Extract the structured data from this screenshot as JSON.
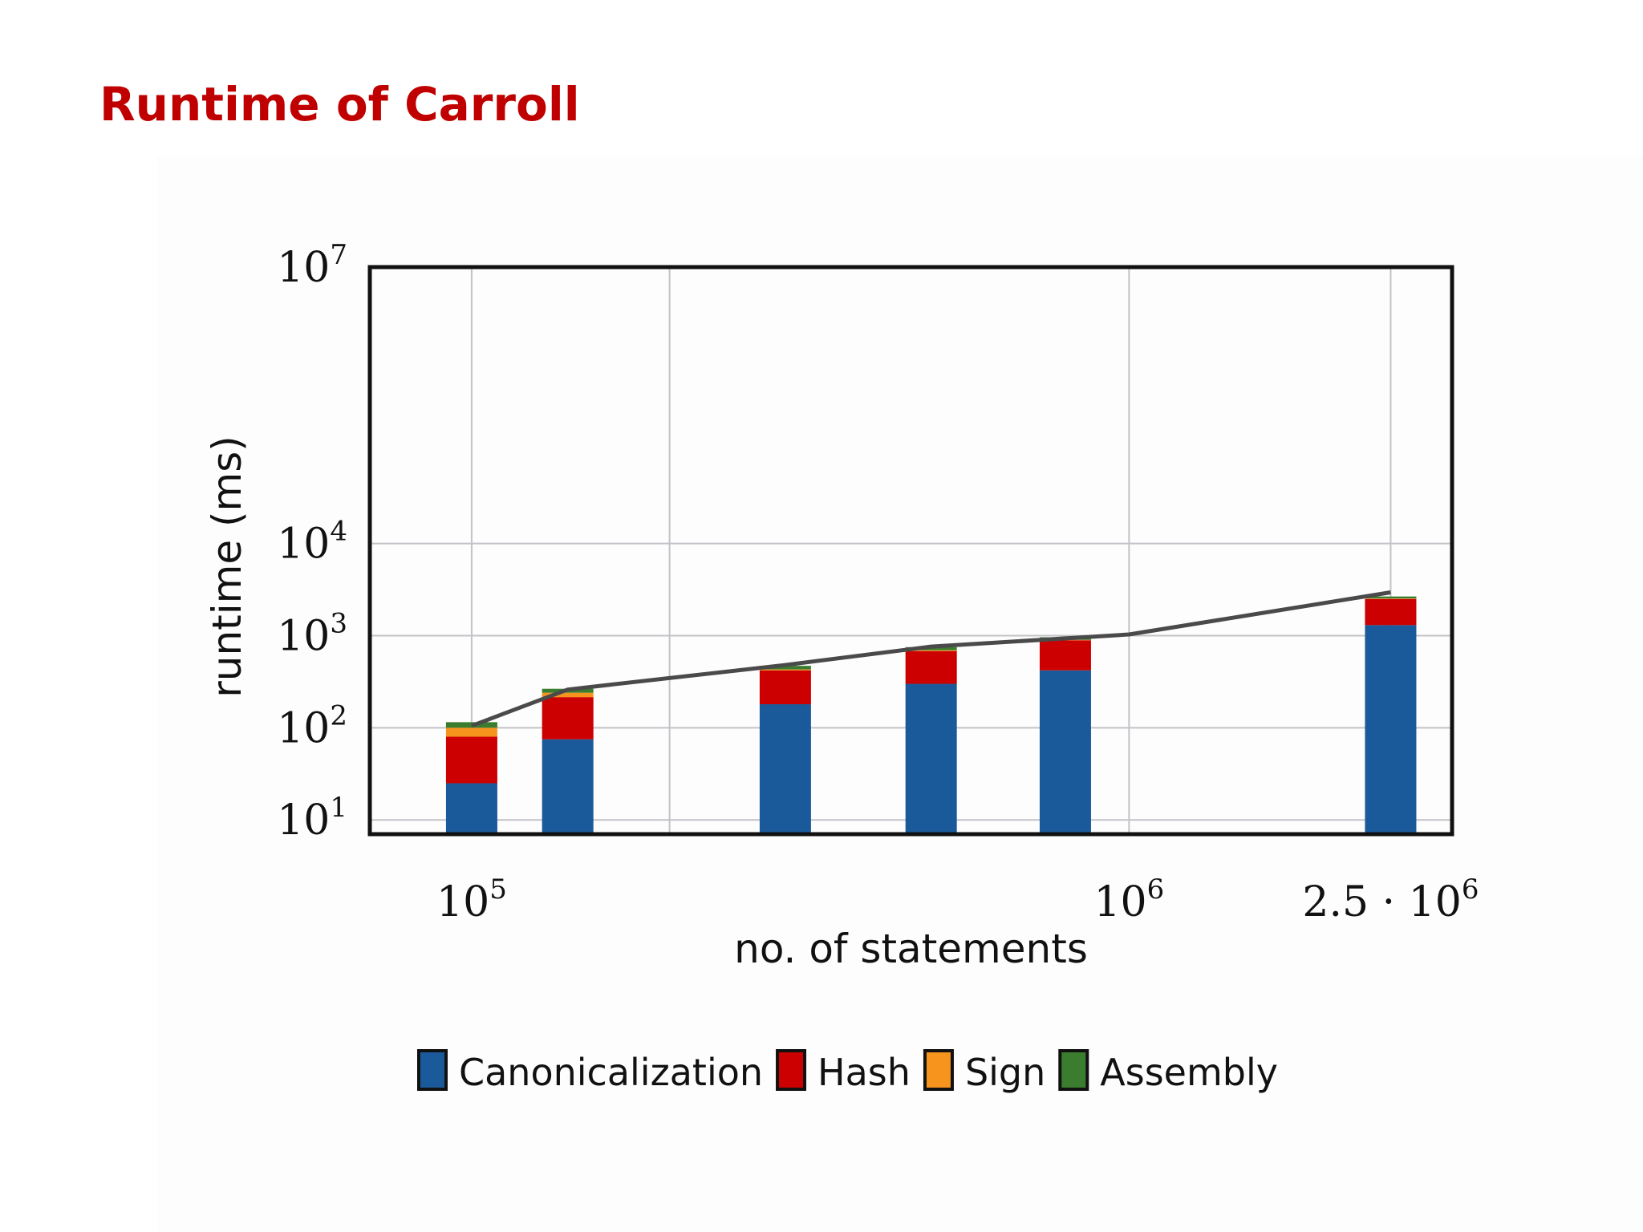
{
  "slide": {
    "title": "Runtime of Carroll"
  },
  "chart_data": {
    "type": "bar",
    "stacked": true,
    "x_scale": "log",
    "y_scale": "log",
    "xlabel": "no. of statements",
    "ylabel": "runtime (ms)",
    "xlim": [
      70000,
      3100000
    ],
    "ylim": [
      7,
      10000000
    ],
    "x_ticks": [
      {
        "value": 100000,
        "label": "10",
        "exp": "5"
      },
      {
        "value": 1000000,
        "label": "10",
        "exp": "6"
      },
      {
        "value": 2500000,
        "label": "2.5 · 10",
        "exp": "6"
      }
    ],
    "x_grid": [
      100000,
      200000,
      1000000,
      2500000
    ],
    "y_ticks": [
      {
        "value": 10,
        "label": "10",
        "exp": "1"
      },
      {
        "value": 100,
        "label": "10",
        "exp": "2"
      },
      {
        "value": 1000,
        "label": "10",
        "exp": "3"
      },
      {
        "value": 10000,
        "label": "10",
        "exp": "4"
      },
      {
        "value": 10000000,
        "label": "10",
        "exp": "7"
      }
    ],
    "y_grid": [
      10,
      100,
      1000,
      10000
    ],
    "x": [
      100000,
      140000,
      300000,
      500000,
      800000,
      2500000
    ],
    "series": [
      {
        "name": "Canonicalization",
        "color": "#1b5a9a",
        "values": [
          25,
          75,
          180,
          300,
          420,
          1300
        ]
      },
      {
        "name": "Hash",
        "color": "#cc0000",
        "values": [
          55,
          140,
          240,
          380,
          470,
          1200
        ]
      },
      {
        "name": "Sign",
        "color": "#f7941d",
        "values": [
          20,
          25,
          10,
          15,
          10,
          30
        ]
      },
      {
        "name": "Assembly",
        "color": "#3b7d2f",
        "values": [
          15,
          25,
          40,
          55,
          60,
          130
        ]
      }
    ],
    "line": {
      "color": "#4a4a4a",
      "x": [
        100000,
        140000,
        300000,
        500000,
        1000000,
        2500000
      ],
      "y": [
        105,
        260,
        480,
        760,
        1030,
        2950
      ]
    },
    "legend_position": "bottom"
  }
}
